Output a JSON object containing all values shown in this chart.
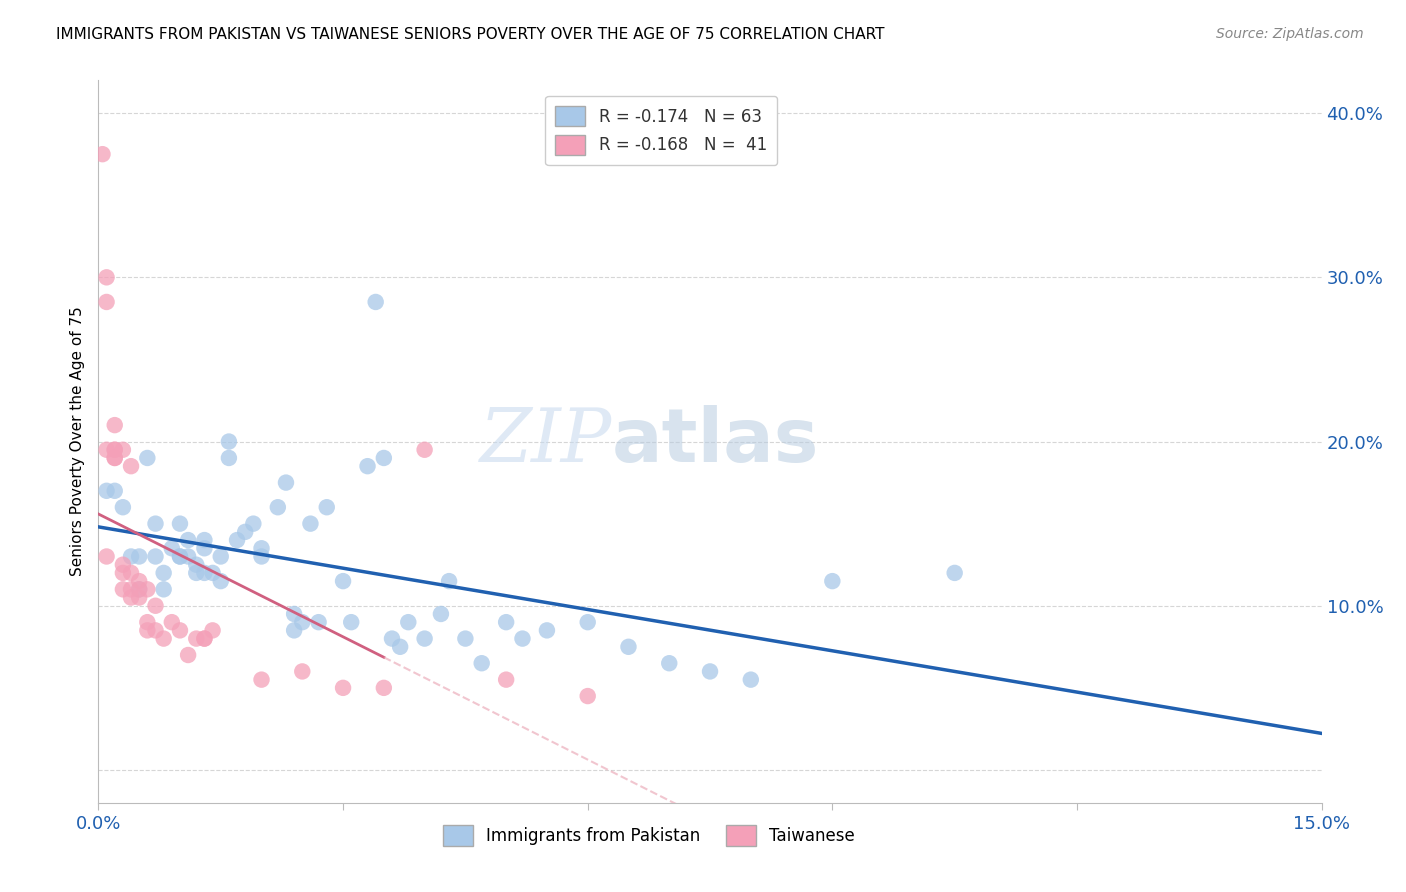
{
  "title": "IMMIGRANTS FROM PAKISTAN VS TAIWANESE SENIORS POVERTY OVER THE AGE OF 75 CORRELATION CHART",
  "source": "Source: ZipAtlas.com",
  "ylabel": "Seniors Poverty Over the Age of 75",
  "xlim": [
    0.0,
    0.15
  ],
  "ylim": [
    -0.02,
    0.42
  ],
  "legend_entry_1": "R = -0.174   N = 63",
  "legend_entry_2": "R = -0.168   N =  41",
  "legend_series_1": "Immigrants from Pakistan",
  "legend_series_2": "Taiwanese",
  "color_blue": "#a8c8e8",
  "color_pink": "#f4a0b8",
  "color_blue_line": "#2060b0",
  "color_pink_line": "#d06080",
  "color_pink_dash": "#e8a0b0",
  "color_grid": "#cccccc",
  "watermark_zip": "ZIP",
  "watermark_atlas": "atlas",
  "blue_x": [
    0.001,
    0.002,
    0.003,
    0.004,
    0.005,
    0.005,
    0.006,
    0.007,
    0.007,
    0.008,
    0.008,
    0.009,
    0.01,
    0.01,
    0.01,
    0.011,
    0.011,
    0.012,
    0.012,
    0.013,
    0.013,
    0.013,
    0.014,
    0.015,
    0.015,
    0.016,
    0.016,
    0.017,
    0.018,
    0.019,
    0.02,
    0.02,
    0.022,
    0.023,
    0.024,
    0.024,
    0.025,
    0.026,
    0.027,
    0.028,
    0.03,
    0.031,
    0.033,
    0.034,
    0.035,
    0.036,
    0.037,
    0.038,
    0.04,
    0.042,
    0.043,
    0.045,
    0.047,
    0.05,
    0.052,
    0.055,
    0.06,
    0.065,
    0.07,
    0.075,
    0.08,
    0.09,
    0.105
  ],
  "blue_y": [
    0.17,
    0.17,
    0.16,
    0.13,
    0.13,
    0.11,
    0.19,
    0.15,
    0.13,
    0.11,
    0.12,
    0.135,
    0.13,
    0.13,
    0.15,
    0.13,
    0.14,
    0.125,
    0.12,
    0.12,
    0.135,
    0.14,
    0.12,
    0.115,
    0.13,
    0.19,
    0.2,
    0.14,
    0.145,
    0.15,
    0.13,
    0.135,
    0.16,
    0.175,
    0.085,
    0.095,
    0.09,
    0.15,
    0.09,
    0.16,
    0.115,
    0.09,
    0.185,
    0.285,
    0.19,
    0.08,
    0.075,
    0.09,
    0.08,
    0.095,
    0.115,
    0.08,
    0.065,
    0.09,
    0.08,
    0.085,
    0.09,
    0.075,
    0.065,
    0.06,
    0.055,
    0.115,
    0.12
  ],
  "pink_x": [
    0.0005,
    0.001,
    0.001,
    0.001,
    0.001,
    0.002,
    0.002,
    0.002,
    0.002,
    0.002,
    0.003,
    0.003,
    0.003,
    0.003,
    0.004,
    0.004,
    0.004,
    0.004,
    0.005,
    0.005,
    0.005,
    0.006,
    0.006,
    0.006,
    0.007,
    0.007,
    0.008,
    0.009,
    0.01,
    0.011,
    0.012,
    0.013,
    0.013,
    0.014,
    0.02,
    0.025,
    0.03,
    0.035,
    0.04,
    0.05,
    0.06
  ],
  "pink_y": [
    0.375,
    0.3,
    0.285,
    0.195,
    0.13,
    0.21,
    0.195,
    0.195,
    0.19,
    0.19,
    0.195,
    0.12,
    0.125,
    0.11,
    0.185,
    0.12,
    0.11,
    0.105,
    0.115,
    0.105,
    0.11,
    0.11,
    0.09,
    0.085,
    0.085,
    0.1,
    0.08,
    0.09,
    0.085,
    0.07,
    0.08,
    0.08,
    0.08,
    0.085,
    0.055,
    0.06,
    0.05,
    0.05,
    0.195,
    0.055,
    0.045
  ]
}
